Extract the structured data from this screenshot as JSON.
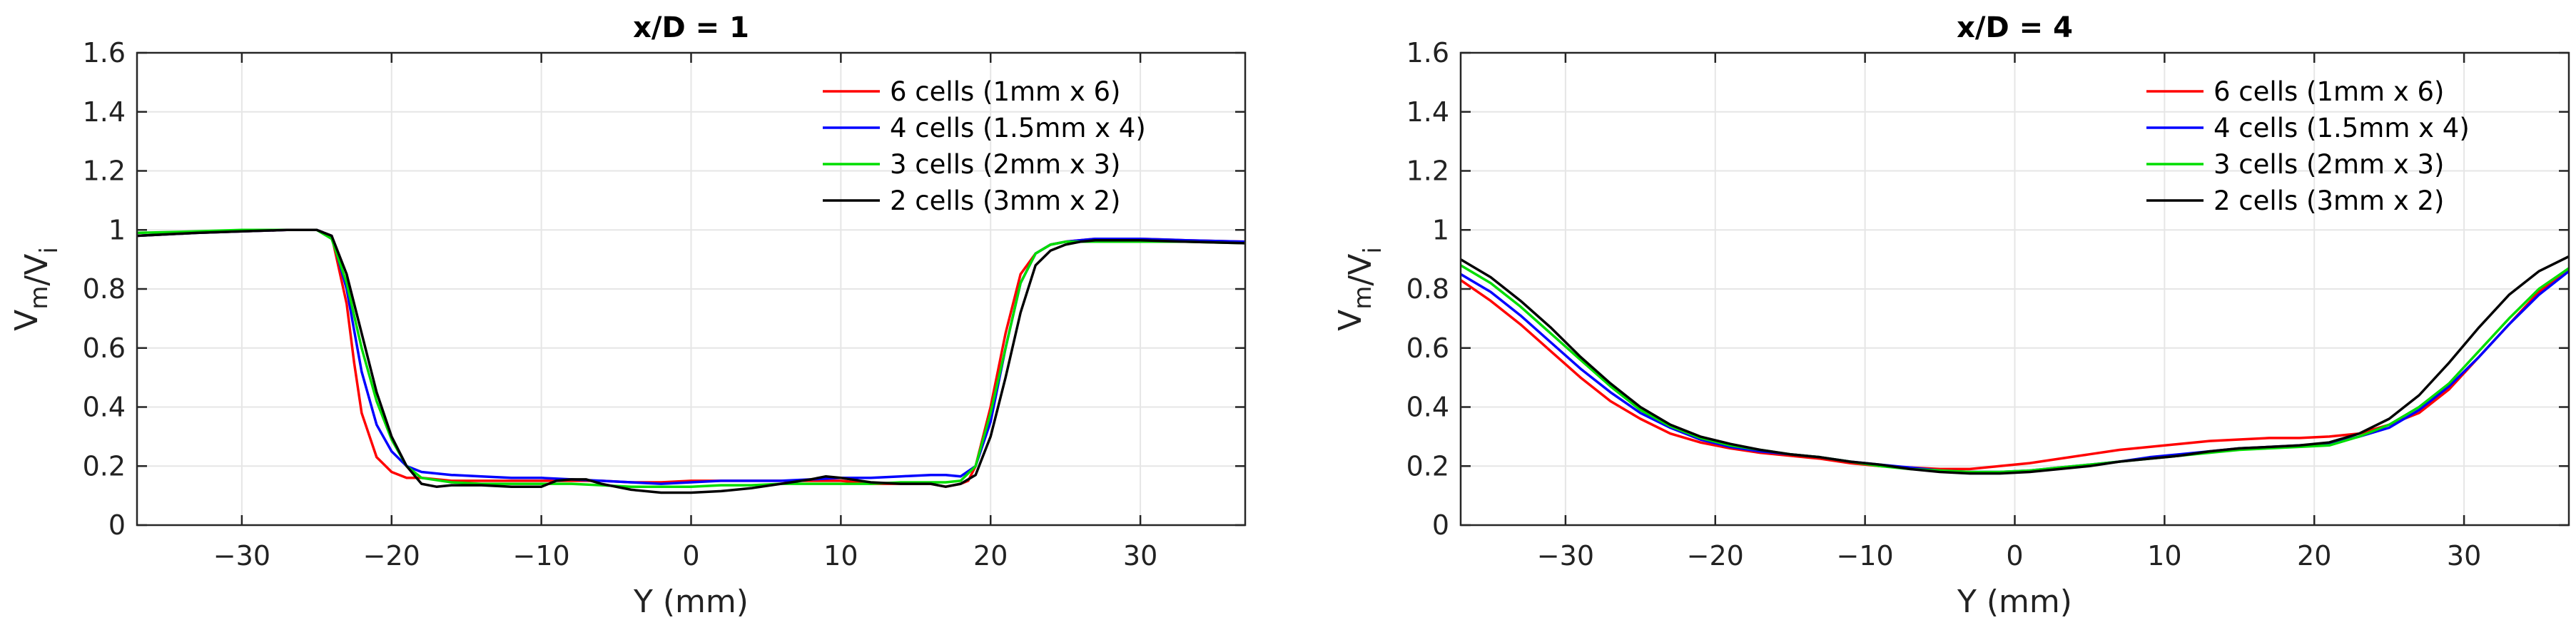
{
  "chart_data": [
    {
      "type": "line",
      "title": "x/D = 1",
      "xlabel": "Y (mm)",
      "ylabel": "V_m/V_i",
      "xlim": [
        -37,
        37
      ],
      "ylim": [
        0,
        1.6
      ],
      "x_ticks": [
        -30,
        -20,
        -10,
        0,
        10,
        20,
        30
      ],
      "x_tick_labels": [
        "−30",
        "−20",
        "−10",
        "0",
        "10",
        "20",
        "30"
      ],
      "y_ticks": [
        0,
        0.2,
        0.4,
        0.6,
        0.8,
        1,
        1.2,
        1.4,
        1.6
      ],
      "y_tick_labels": [
        "0",
        "0.2",
        "0.4",
        "0.6",
        "0.8",
        "1",
        "1.2",
        "1.4",
        "1.6"
      ],
      "grid": true,
      "legend_position": "top-right",
      "series": [
        {
          "name": "6 cells (1mm x 6)",
          "color": "#ff0000",
          "x": [
            -37,
            -33,
            -30,
            -27,
            -25,
            -24,
            -23,
            -22.5,
            -22,
            -21,
            -20,
            -19,
            -18,
            -16,
            -14,
            -12,
            -10,
            -8,
            -6,
            -4,
            -2,
            0,
            2,
            4,
            6,
            8,
            10,
            12,
            14,
            16,
            17,
            18,
            18.5,
            19,
            20,
            21,
            22,
            23,
            24,
            25,
            27,
            30,
            33,
            37
          ],
          "values": [
            0.98,
            0.99,
            0.995,
            1.0,
            1.0,
            0.98,
            0.75,
            0.55,
            0.38,
            0.23,
            0.18,
            0.16,
            0.16,
            0.15,
            0.15,
            0.15,
            0.15,
            0.15,
            0.15,
            0.145,
            0.145,
            0.15,
            0.15,
            0.15,
            0.15,
            0.15,
            0.15,
            0.14,
            0.14,
            0.14,
            0.13,
            0.14,
            0.15,
            0.2,
            0.4,
            0.65,
            0.85,
            0.92,
            0.95,
            0.96,
            0.97,
            0.97,
            0.965,
            0.96
          ]
        },
        {
          "name": "4 cells (1.5mm x 4)",
          "color": "#0000ff",
          "x": [
            -37,
            -33,
            -30,
            -27,
            -25,
            -24,
            -23,
            -22,
            -21,
            -20,
            -19,
            -18,
            -16,
            -14,
            -12,
            -10,
            -8,
            -6,
            -4,
            -2,
            0,
            2,
            4,
            6,
            8,
            10,
            12,
            14,
            16,
            17,
            18,
            19,
            20,
            21,
            22,
            23,
            24,
            25,
            27,
            30,
            33,
            37
          ],
          "values": [
            0.98,
            0.99,
            0.995,
            1.0,
            1.0,
            0.98,
            0.8,
            0.52,
            0.34,
            0.25,
            0.2,
            0.18,
            0.17,
            0.165,
            0.16,
            0.16,
            0.155,
            0.15,
            0.145,
            0.14,
            0.145,
            0.15,
            0.15,
            0.15,
            0.155,
            0.16,
            0.16,
            0.165,
            0.17,
            0.17,
            0.165,
            0.2,
            0.35,
            0.6,
            0.82,
            0.92,
            0.95,
            0.96,
            0.97,
            0.97,
            0.965,
            0.96
          ]
        },
        {
          "name": "3 cells (2mm x 3)",
          "color": "#00dd00",
          "x": [
            -37,
            -33,
            -30,
            -27,
            -25,
            -24,
            -23,
            -22,
            -21,
            -20,
            -19,
            -18,
            -16,
            -14,
            -12,
            -10,
            -8,
            -6,
            -4,
            -2,
            0,
            2,
            4,
            6,
            8,
            10,
            12,
            14,
            16,
            17,
            18,
            19,
            20,
            21,
            22,
            23,
            24,
            25,
            27,
            30,
            33,
            37
          ],
          "values": [
            0.99,
            0.995,
            1.0,
            1.0,
            1.0,
            0.97,
            0.82,
            0.6,
            0.42,
            0.29,
            0.2,
            0.16,
            0.145,
            0.14,
            0.14,
            0.14,
            0.14,
            0.135,
            0.13,
            0.13,
            0.13,
            0.135,
            0.135,
            0.14,
            0.14,
            0.14,
            0.14,
            0.145,
            0.145,
            0.145,
            0.15,
            0.2,
            0.38,
            0.6,
            0.82,
            0.92,
            0.95,
            0.96,
            0.96,
            0.96,
            0.96,
            0.955
          ]
        },
        {
          "name": "2 cells (3mm x 2)",
          "color": "#000000",
          "x": [
            -37,
            -33,
            -30,
            -27,
            -25,
            -24,
            -23,
            -22,
            -21,
            -20,
            -19,
            -18,
            -17,
            -16,
            -14,
            -12,
            -10,
            -9,
            -8,
            -7,
            -6,
            -4,
            -2,
            0,
            2,
            4,
            6,
            8,
            9,
            10,
            12,
            14,
            16,
            17,
            18,
            19,
            20,
            21,
            22,
            23,
            24,
            25,
            26,
            27,
            30,
            33,
            37
          ],
          "values": [
            0.98,
            0.99,
            0.995,
            1.0,
            1.0,
            0.98,
            0.85,
            0.65,
            0.45,
            0.3,
            0.2,
            0.14,
            0.13,
            0.135,
            0.135,
            0.13,
            0.13,
            0.15,
            0.155,
            0.155,
            0.14,
            0.12,
            0.11,
            0.11,
            0.115,
            0.125,
            0.14,
            0.155,
            0.165,
            0.16,
            0.145,
            0.14,
            0.14,
            0.13,
            0.14,
            0.17,
            0.3,
            0.5,
            0.72,
            0.88,
            0.93,
            0.95,
            0.96,
            0.965,
            0.965,
            0.96,
            0.955
          ]
        }
      ]
    },
    {
      "type": "line",
      "title": "x/D = 4",
      "xlabel": "Y (mm)",
      "ylabel": "V_m/V_i",
      "xlim": [
        -37,
        37
      ],
      "ylim": [
        0,
        1.6
      ],
      "x_ticks": [
        -30,
        -20,
        -10,
        0,
        10,
        20,
        30
      ],
      "x_tick_labels": [
        "−30",
        "−20",
        "−10",
        "0",
        "10",
        "20",
        "30"
      ],
      "y_ticks": [
        0,
        0.2,
        0.4,
        0.6,
        0.8,
        1,
        1.2,
        1.4,
        1.6
      ],
      "y_tick_labels": [
        "0",
        "0.2",
        "0.4",
        "0.6",
        "0.8",
        "1",
        "1.2",
        "1.4",
        "1.6"
      ],
      "grid": true,
      "legend_position": "top-right",
      "series": [
        {
          "name": "6 cells (1mm x 6)",
          "color": "#ff0000",
          "x": [
            -37,
            -35,
            -33,
            -31,
            -29,
            -27,
            -25,
            -23,
            -21,
            -19,
            -17,
            -15,
            -13,
            -11,
            -9,
            -7,
            -5,
            -3,
            -1,
            1,
            3,
            5,
            7,
            9,
            11,
            13,
            15,
            17,
            19,
            21,
            23,
            25,
            27,
            29,
            31,
            33,
            35,
            37
          ],
          "values": [
            0.83,
            0.76,
            0.68,
            0.59,
            0.5,
            0.42,
            0.36,
            0.31,
            0.28,
            0.26,
            0.245,
            0.235,
            0.225,
            0.21,
            0.2,
            0.195,
            0.19,
            0.19,
            0.2,
            0.21,
            0.225,
            0.24,
            0.255,
            0.265,
            0.275,
            0.285,
            0.29,
            0.295,
            0.295,
            0.3,
            0.31,
            0.34,
            0.38,
            0.46,
            0.57,
            0.68,
            0.79,
            0.86
          ]
        },
        {
          "name": "4 cells (1.5mm x 4)",
          "color": "#0000ff",
          "x": [
            -37,
            -35,
            -33,
            -31,
            -29,
            -27,
            -25,
            -23,
            -21,
            -19,
            -17,
            -15,
            -13,
            -11,
            -9,
            -7,
            -5,
            -3,
            -1,
            1,
            3,
            5,
            7,
            9,
            11,
            13,
            15,
            17,
            19,
            21,
            23,
            25,
            27,
            29,
            31,
            33,
            35,
            37
          ],
          "values": [
            0.85,
            0.79,
            0.71,
            0.62,
            0.53,
            0.45,
            0.38,
            0.33,
            0.29,
            0.265,
            0.25,
            0.24,
            0.23,
            0.215,
            0.205,
            0.195,
            0.185,
            0.18,
            0.18,
            0.185,
            0.195,
            0.205,
            0.215,
            0.23,
            0.24,
            0.25,
            0.26,
            0.265,
            0.27,
            0.275,
            0.3,
            0.33,
            0.39,
            0.47,
            0.57,
            0.68,
            0.78,
            0.86
          ]
        },
        {
          "name": "3 cells (2mm x 3)",
          "color": "#00dd00",
          "x": [
            -37,
            -35,
            -33,
            -31,
            -29,
            -27,
            -25,
            -23,
            -21,
            -19,
            -17,
            -15,
            -13,
            -11,
            -9,
            -7,
            -5,
            -3,
            -1,
            1,
            3,
            5,
            7,
            9,
            11,
            13,
            15,
            17,
            19,
            21,
            23,
            25,
            27,
            29,
            31,
            33,
            35,
            37
          ],
          "values": [
            0.88,
            0.82,
            0.74,
            0.65,
            0.56,
            0.47,
            0.39,
            0.335,
            0.295,
            0.27,
            0.255,
            0.24,
            0.23,
            0.215,
            0.2,
            0.19,
            0.185,
            0.18,
            0.18,
            0.185,
            0.195,
            0.205,
            0.215,
            0.225,
            0.235,
            0.245,
            0.255,
            0.26,
            0.265,
            0.27,
            0.3,
            0.34,
            0.4,
            0.48,
            0.59,
            0.7,
            0.8,
            0.87
          ]
        },
        {
          "name": "2 cells (3mm x 2)",
          "color": "#000000",
          "x": [
            -37,
            -35,
            -33,
            -31,
            -29,
            -27,
            -25,
            -23,
            -21,
            -19,
            -17,
            -15,
            -13,
            -11,
            -9,
            -7,
            -5,
            -3,
            -1,
            1,
            3,
            5,
            7,
            9,
            11,
            13,
            15,
            17,
            19,
            21,
            23,
            25,
            27,
            29,
            31,
            33,
            35,
            37
          ],
          "values": [
            0.9,
            0.84,
            0.76,
            0.67,
            0.57,
            0.48,
            0.4,
            0.34,
            0.3,
            0.275,
            0.255,
            0.24,
            0.23,
            0.215,
            0.205,
            0.19,
            0.18,
            0.175,
            0.175,
            0.18,
            0.19,
            0.2,
            0.215,
            0.225,
            0.235,
            0.25,
            0.26,
            0.265,
            0.27,
            0.28,
            0.31,
            0.36,
            0.44,
            0.55,
            0.67,
            0.78,
            0.86,
            0.91
          ]
        }
      ]
    }
  ]
}
